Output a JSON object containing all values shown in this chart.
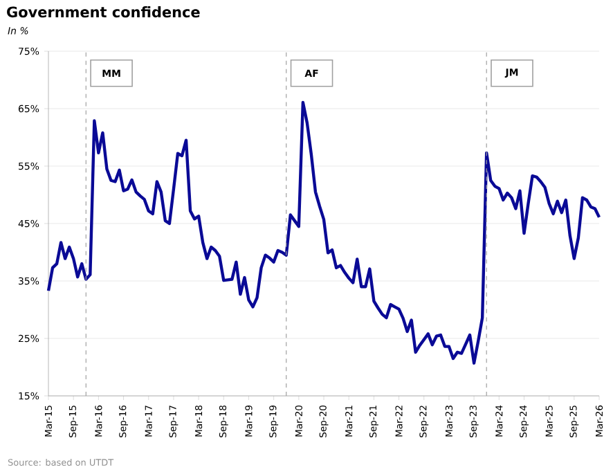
{
  "chart_data": {
    "type": "line",
    "title": "Government confidence",
    "subtitle": "In %",
    "annotations": [
      "Source: based on UTDT"
    ],
    "x": [
      "2015-03",
      "2015-04",
      "2015-05",
      "2015-06",
      "2015-07",
      "2015-08",
      "2015-09",
      "2015-10",
      "2015-11",
      "2015-12",
      "2016-01",
      "2016-02",
      "2016-03",
      "2016-04",
      "2016-05",
      "2016-06",
      "2016-07",
      "2016-08",
      "2016-09",
      "2016-10",
      "2016-11",
      "2016-12",
      "2017-01",
      "2017-02",
      "2017-03",
      "2017-04",
      "2017-05",
      "2017-06",
      "2017-07",
      "2017-08",
      "2017-09",
      "2017-10",
      "2017-11",
      "2017-12",
      "2018-01",
      "2018-02",
      "2018-03",
      "2018-04",
      "2018-05",
      "2018-06",
      "2018-07",
      "2018-08",
      "2018-09",
      "2018-10",
      "2018-11",
      "2018-12",
      "2019-01",
      "2019-02",
      "2019-03",
      "2019-04",
      "2019-05",
      "2019-06",
      "2019-07",
      "2019-08",
      "2019-09",
      "2019-10",
      "2019-11",
      "2019-12",
      "2020-01",
      "2020-02",
      "2020-03",
      "2020-04",
      "2020-05",
      "2020-06",
      "2020-07",
      "2020-08",
      "2020-09",
      "2020-10",
      "2020-11",
      "2020-12",
      "2021-01",
      "2021-02",
      "2021-03",
      "2021-04",
      "2021-05",
      "2021-06",
      "2021-07",
      "2021-08",
      "2021-09",
      "2021-10",
      "2021-11",
      "2021-12",
      "2022-01",
      "2022-02",
      "2022-03",
      "2022-04",
      "2022-05",
      "2022-06",
      "2022-07",
      "2022-08",
      "2022-09",
      "2022-10",
      "2022-11",
      "2022-12",
      "2023-01",
      "2023-02",
      "2023-03",
      "2023-04",
      "2023-05",
      "2023-06",
      "2023-07",
      "2023-08",
      "2023-09",
      "2023-10",
      "2023-11",
      "2023-12",
      "2024-01",
      "2024-02",
      "2024-03",
      "2024-04",
      "2024-05",
      "2024-06",
      "2024-07",
      "2024-08",
      "2024-09",
      "2024-10",
      "2024-11",
      "2024-12",
      "2025-01",
      "2025-02",
      "2025-03",
      "2025-04",
      "2025-05",
      "2025-06",
      "2025-07",
      "2025-08",
      "2025-09",
      "2025-10",
      "2025-11",
      "2025-12",
      "2026-01",
      "2026-02",
      "2026-03"
    ],
    "series": [
      {
        "color": "#0a0a96",
        "values": [
          33.3,
          37.3,
          38,
          41.7,
          38.9,
          40.9,
          38.9,
          35.7,
          38,
          35.3,
          36.1,
          62.9,
          57.3,
          60.8,
          54.5,
          52.5,
          52.3,
          54.3,
          50.7,
          51,
          52.6,
          50.5,
          49.8,
          49.2,
          47.2,
          46.7,
          52.3,
          50.5,
          45.5,
          45,
          51,
          57.2,
          56.8,
          59.5,
          47.2,
          45.8,
          46.3,
          41.7,
          38.9,
          40.9,
          40.3,
          39.3,
          35.1,
          35.2,
          35.3,
          38.3,
          32.7,
          35.6,
          31.7,
          30.5,
          32.1,
          37.3,
          39.5,
          39,
          38.3,
          40.3,
          40,
          39.5,
          46.5,
          45.5,
          44.5,
          66.1,
          62.5,
          57,
          50.5,
          48,
          45.7,
          39.9,
          40.4,
          37.3,
          37.7,
          36.5,
          35.5,
          34.7,
          38.8,
          34,
          34,
          37.1,
          31.5,
          30.3,
          29.2,
          28.6,
          30.9,
          30.5,
          30.1,
          28.5,
          26.2,
          28.2,
          22.6,
          23.8,
          24.8,
          25.8,
          23.9,
          25.4,
          25.6,
          23.6,
          23.6,
          21.5,
          22.6,
          22.4,
          24,
          25.6,
          20.7,
          24.5,
          28.6,
          57.3,
          52.5,
          51.5,
          51.1,
          49.1,
          50.3,
          49.5,
          47.6,
          50.7,
          43.3,
          48.5,
          53.3,
          53.1,
          52.3,
          51.3,
          48.5,
          46.7,
          48.9,
          46.9,
          49.1,
          42.9,
          38.9,
          42.5,
          49.5,
          49.1,
          47.9,
          47.6,
          46.1
        ]
      }
    ],
    "xlim": [
      "2015-03",
      "2026-03"
    ],
    "xticks": [
      {
        "value": "2015-03",
        "label": "Mar-15"
      },
      {
        "value": "2015-09",
        "label": "Sep-15"
      },
      {
        "value": "2016-03",
        "label": "Mar-16"
      },
      {
        "value": "2016-09",
        "label": "Sep-16"
      },
      {
        "value": "2017-03",
        "label": "Mar-17"
      },
      {
        "value": "2017-09",
        "label": "Sep-17"
      },
      {
        "value": "2018-03",
        "label": "Mar-18"
      },
      {
        "value": "2018-09",
        "label": "Sep-18"
      },
      {
        "value": "2019-03",
        "label": "Mar-19"
      },
      {
        "value": "2019-09",
        "label": "Sep-19"
      },
      {
        "value": "2020-03",
        "label": "Mar-20"
      },
      {
        "value": "2020-09",
        "label": "Sep-20"
      },
      {
        "value": "2021-03",
        "label": "Mar-21"
      },
      {
        "value": "2021-09",
        "label": "Sep-21"
      },
      {
        "value": "2022-03",
        "label": "Mar-22"
      },
      {
        "value": "2022-09",
        "label": "Sep-22"
      },
      {
        "value": "2023-03",
        "label": "Mar-23"
      },
      {
        "value": "2023-09",
        "label": "Sep-23"
      },
      {
        "value": "2024-03",
        "label": "Mar-24"
      },
      {
        "value": "2024-09",
        "label": "Sep-24"
      },
      {
        "value": "2025-03",
        "label": "Mar-25"
      },
      {
        "value": "2025-09",
        "label": "Sep-25"
      },
      {
        "value": "2026-03",
        "label": "Mar-26"
      }
    ],
    "ylim": [
      15,
      75
    ],
    "yticks": [
      {
        "value": 15,
        "label": "15%"
      },
      {
        "value": 25,
        "label": "25%"
      },
      {
        "value": 35,
        "label": "35%"
      },
      {
        "value": 45,
        "label": "45%"
      },
      {
        "value": 55,
        "label": "55%"
      },
      {
        "value": 65,
        "label": "65%"
      },
      {
        "value": 75,
        "label": "75%"
      }
    ],
    "ref_lines": [
      {
        "axis": "x",
        "value": "2015-12",
        "label": "MM",
        "color": "#a0a0a0",
        "line_style": "dashed"
      },
      {
        "axis": "x",
        "value": "2019-12",
        "label": "AF",
        "color": "#a0a0a0",
        "line_style": "dashed"
      },
      {
        "axis": "x",
        "value": "2023-12",
        "label": "JM",
        "color": "#a0a0a0",
        "line_style": "dashed"
      }
    ],
    "grid": "y",
    "marker": "none",
    "line_style": "solid"
  }
}
